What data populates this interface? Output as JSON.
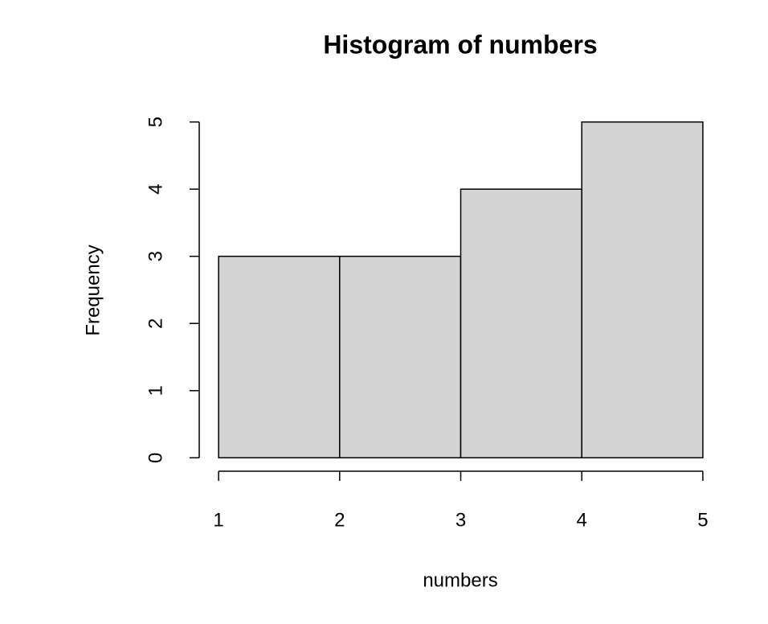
{
  "chart_data": {
    "type": "histogram",
    "title": "Histogram of numbers",
    "x_label": "numbers",
    "y_label": "Frequency",
    "bins": [
      1,
      2,
      3,
      4,
      5
    ],
    "counts": [
      3,
      3,
      4,
      5
    ],
    "color": "#d3d3d3",
    "xlim": [
      0.84,
      5.16
    ],
    "ylim": [
      -0.2,
      5.2
    ],
    "xticks": [
      1,
      2,
      3,
      4,
      5
    ],
    "yticks": [
      0,
      1,
      2,
      3,
      4,
      5
    ],
    "grid": false
  }
}
